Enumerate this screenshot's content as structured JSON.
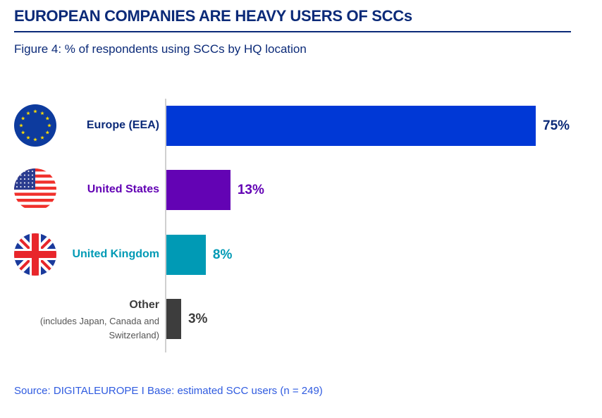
{
  "title": "EUROPEAN COMPANIES ARE HEAVY USERS OF SCCs",
  "subtitle": "Figure 4: % of respondents using SCCs by HQ location",
  "source": "Source: DIGITALEUROPE I Base: estimated SCC users (n = 249)",
  "chart_data": {
    "type": "bar",
    "orientation": "horizontal",
    "title": "Figure 4: % of respondents using SCCs by HQ location",
    "categories": [
      "Europe (EEA)",
      "United States",
      "United Kingdom",
      "Other"
    ],
    "category_notes": [
      "",
      "",
      "",
      "(includes Japan, Canada and Switzerland)"
    ],
    "values": [
      75,
      13,
      8,
      3
    ],
    "labels": [
      "75%",
      "13%",
      "8%",
      "3%"
    ],
    "colors": [
      "#0038d6",
      "#6303b4",
      "#009ab5",
      "#3d3d3d"
    ],
    "label_colors": [
      "#0b2a78",
      "#6303b4",
      "#009ab5",
      "#3d3d3d"
    ],
    "icons": [
      "eu-flag-icon",
      "us-flag-icon",
      "uk-flag-icon",
      ""
    ],
    "xlim": [
      0,
      75
    ],
    "grid": false
  }
}
